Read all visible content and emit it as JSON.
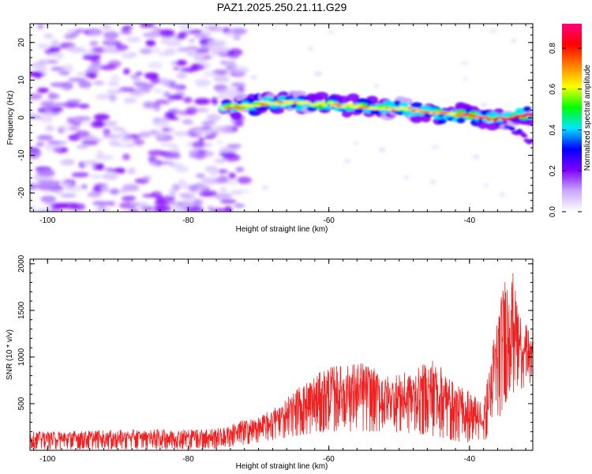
{
  "title": "PAZ1.2025.250.21.11.G29",
  "chart_data": [
    {
      "type": "heatmap",
      "xlabel": "Height of straight line (km)",
      "ylabel": "Frequency (Hz)",
      "xlim": [
        -102.5,
        -31.0
      ],
      "ylim": [
        -25,
        25
      ],
      "x_ticks": [
        -100,
        -80,
        -60,
        -40
      ],
      "y_ticks": [
        -20,
        -10,
        0,
        10,
        20
      ],
      "colorbar": {
        "label": "Normalized spectral amplitude",
        "range": [
          0,
          0.92
        ],
        "ticks": [
          0.0,
          0.2,
          0.4,
          0.6,
          0.8
        ],
        "colors": [
          "#ffffff",
          "#c9a8ff",
          "#7f00ff",
          "#0000ff",
          "#00e5ff",
          "#00ff00",
          "#ffff00",
          "#ff7f00",
          "#ff0000",
          "#ff0080"
        ]
      },
      "features": {
        "noise_region_x": [
          -102.5,
          -72
        ],
        "ridge": {
          "description": "",
          "x": [
            -75,
            -70,
            -65,
            -60,
            -55,
            -50,
            -45,
            -40,
            -36,
            -33,
            -31
          ],
          "y": [
            2.5,
            3.5,
            4.0,
            3.5,
            3.0,
            2.5,
            1.5,
            0.5,
            -0.5,
            0.5,
            1.0
          ],
          "peak_amplitude": 0.9
        },
        "branch": {
          "x": [
            -35,
            -33,
            -31
          ],
          "y": [
            -2,
            -4,
            -6.5
          ]
        }
      }
    },
    {
      "type": "line",
      "xlabel": "Height of straight line (km)",
      "ylabel": "SNR (10 * v/v)",
      "xlim": [
        -102.5,
        -31.0
      ],
      "ylim": [
        0,
        2050
      ],
      "x_ticks": [
        -100,
        -80,
        -60,
        -40
      ],
      "y_ticks": [
        500,
        1000,
        1500,
        2000
      ],
      "series": [
        {
          "color": "#ee2222",
          "envelope": {
            "x": [
              -102.5,
              -90,
              -80,
              -75,
              -73,
              -70,
              -67,
              -65,
              -60,
              -55,
              -52,
              -48,
              -45,
              -42,
              -40,
              -38,
              -36,
              -35,
              -34,
              -33,
              -31
            ],
            "max": [
              200,
              220,
              230,
              240,
              320,
              350,
              500,
              650,
              900,
              950,
              800,
              850,
              1000,
              700,
              650,
              500,
              1500,
              1850,
              2000,
              1500,
              1200
            ],
            "min": [
              10,
              10,
              10,
              20,
              50,
              80,
              120,
              150,
              200,
              200,
              200,
              180,
              150,
              100,
              80,
              80,
              300,
              500,
              600,
              650,
              700
            ]
          }
        }
      ]
    }
  ]
}
